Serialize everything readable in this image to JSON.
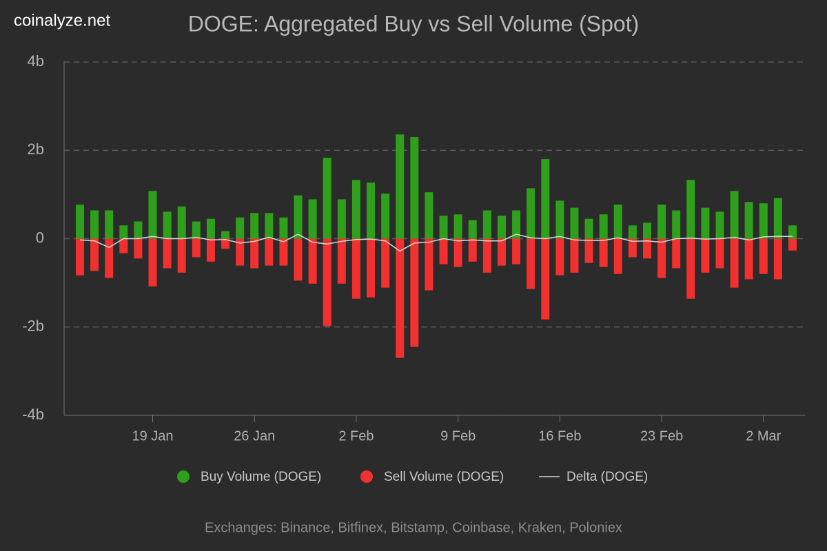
{
  "chart_data": {
    "type": "bar",
    "title": "DOGE: Aggregated Buy vs Sell Volume (Spot)",
    "watermark": "coinalyze.net",
    "note": "Exchanges: Binance, Bitfinex, Bitstamp, Coinbase, Kraken, Poloniex",
    "categories": [
      null,
      null,
      null,
      null,
      null,
      "19 Jan",
      null,
      null,
      null,
      null,
      null,
      null,
      "26 Jan",
      null,
      null,
      null,
      null,
      null,
      null,
      "2 Feb",
      null,
      null,
      null,
      null,
      null,
      null,
      "9 Feb",
      null,
      null,
      null,
      null,
      null,
      null,
      "16 Feb",
      null,
      null,
      null,
      null,
      null,
      null,
      "23 Feb",
      null,
      null,
      null,
      null,
      null,
      null,
      "2 Mar",
      null,
      null
    ],
    "series": [
      {
        "name": "Buy Volume (DOGE)",
        "color": "#2fa01c",
        "values": [
          0.77,
          0.64,
          0.64,
          0.3,
          0.39,
          1.08,
          0.61,
          0.73,
          0.39,
          0.45,
          0.17,
          0.48,
          0.58,
          0.58,
          0.48,
          0.98,
          0.89,
          1.83,
          0.89,
          1.33,
          1.27,
          1.02,
          2.36,
          2.3,
          1.05,
          0.52,
          0.55,
          0.42,
          0.64,
          0.52,
          0.64,
          1.14,
          1.8,
          0.86,
          0.7,
          0.45,
          0.55,
          0.77,
          0.3,
          0.36,
          0.77,
          0.64,
          1.33,
          0.7,
          0.61,
          1.08,
          0.83,
          0.8,
          0.92,
          0.3
        ]
      },
      {
        "name": "Sell Volume (DOGE)",
        "color": "#f23030",
        "values": [
          -0.83,
          -0.73,
          -0.89,
          -0.33,
          -0.45,
          -1.08,
          -0.67,
          -0.77,
          -0.42,
          -0.52,
          -0.23,
          -0.61,
          -0.67,
          -0.61,
          -0.61,
          -0.95,
          -1.02,
          -1.98,
          -1.02,
          -1.36,
          -1.33,
          -1.11,
          -2.7,
          -2.45,
          -1.17,
          -0.58,
          -0.64,
          -0.52,
          -0.77,
          -0.61,
          -0.58,
          -1.14,
          -1.83,
          -0.83,
          -0.77,
          -0.55,
          -0.64,
          -0.8,
          -0.42,
          -0.45,
          -0.89,
          -0.67,
          -1.36,
          -0.77,
          -0.67,
          -1.11,
          -0.92,
          -0.8,
          -0.92,
          -0.27
        ]
      },
      {
        "name": "Delta (DOGE)",
        "color": "#d8d8d8",
        "type": "line",
        "values": [
          -0.03,
          -0.05,
          -0.2,
          0,
          0,
          0.05,
          0,
          0,
          0.03,
          -0.03,
          -0.02,
          -0.1,
          -0.06,
          0.03,
          -0.07,
          0.1,
          -0.08,
          -0.12,
          -0.06,
          -0.02,
          -0.01,
          -0.05,
          -0.28,
          -0.1,
          -0.08,
          0,
          -0.05,
          -0.03,
          -0.05,
          -0.05,
          0.1,
          0.02,
          0,
          0.05,
          -0.03,
          -0.04,
          -0.04,
          0.02,
          -0.06,
          -0.05,
          -0.08,
          0,
          0.01,
          -0.01,
          0,
          0.03,
          -0.03,
          0.04,
          0.05,
          0.05
        ]
      }
    ],
    "ylim": [
      -4,
      4
    ],
    "yticks": [
      {
        "value": 4,
        "label": "4b"
      },
      {
        "value": 2,
        "label": "2b"
      },
      0,
      {
        "value": -2,
        "label": "-2b"
      },
      {
        "value": -4,
        "label": "-4b"
      }
    ],
    "grid": true
  }
}
